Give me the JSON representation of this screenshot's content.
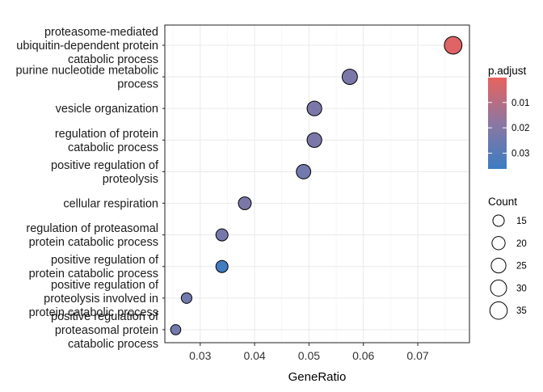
{
  "chart_data": {
    "type": "scatter",
    "xlabel": "GeneRatio",
    "ylabel": "",
    "xlim": [
      0.0235,
      0.0795
    ],
    "x_ticks": [
      0.03,
      0.04,
      0.05,
      0.06,
      0.07
    ],
    "x_tick_labels": [
      "0.03",
      "0.04",
      "0.05",
      "0.06",
      "0.07"
    ],
    "grid": true,
    "categories": [
      "proteasome-mediated ubiquitin-dependent protein catabolic process",
      "purine nucleotide metabolic process",
      "vesicle organization",
      "regulation of protein catabolic process",
      "positive regulation of proteolysis",
      "cellular respiration",
      "regulation of proteasomal protein catabolic process",
      "positive regulation of protein catabolic process",
      "positive regulation of proteolysis involved in protein catabolic process",
      "positive regulation of proteasomal protein catabolic process"
    ],
    "category_label_lines": [
      [
        "proteasome-mediated",
        "ubiquitin-dependent protein",
        "catabolic process"
      ],
      [
        "purine nucleotide metabolic",
        "process"
      ],
      [
        "vesicle organization"
      ],
      [
        "regulation of protein",
        "catabolic process"
      ],
      [
        "positive regulation of",
        "proteolysis"
      ],
      [
        "cellular respiration"
      ],
      [
        "regulation of proteasomal",
        "protein catabolic process"
      ],
      [
        "positive regulation of",
        "protein catabolic process"
      ],
      [
        "positive regulation of",
        "proteolysis involved in",
        "protein catabolic process"
      ],
      [
        "positive regulation of",
        "proteasomal protein",
        "catabolic process"
      ]
    ],
    "points": [
      {
        "category": "proteasome-mediated ubiquitin-dependent protein catabolic process",
        "x": 0.0765,
        "count": 36,
        "p_adjust": 0.002
      },
      {
        "category": "purine nucleotide metabolic process",
        "x": 0.0575,
        "count": 27,
        "p_adjust": 0.022
      },
      {
        "category": "vesicle organization",
        "x": 0.051,
        "count": 25,
        "p_adjust": 0.022
      },
      {
        "category": "regulation of protein catabolic process",
        "x": 0.051,
        "count": 25,
        "p_adjust": 0.022
      },
      {
        "category": "positive regulation of proteolysis",
        "x": 0.049,
        "count": 24,
        "p_adjust": 0.024
      },
      {
        "category": "cellular respiration",
        "x": 0.0382,
        "count": 19,
        "p_adjust": 0.022
      },
      {
        "category": "regulation of proteasomal protein catabolic process",
        "x": 0.034,
        "count": 17,
        "p_adjust": 0.023
      },
      {
        "category": "positive regulation of protein catabolic process",
        "x": 0.034,
        "count": 17,
        "p_adjust": 0.035
      },
      {
        "category": "positive regulation of proteolysis involved in protein catabolic process",
        "x": 0.0275,
        "count": 13,
        "p_adjust": 0.024
      },
      {
        "category": "positive regulation of proteasomal protein catabolic process",
        "x": 0.0255,
        "count": 12,
        "p_adjust": 0.024
      }
    ],
    "color_legend": {
      "title": "p.adjust",
      "ticks": [
        0.01,
        0.02,
        0.03
      ],
      "tick_labels": [
        "0.01",
        "0.02",
        "0.03"
      ],
      "range": [
        0.0002,
        0.0362
      ],
      "low_color": "#E8625E",
      "high_color": "#3B7CC4",
      "mid_color": "#8C77A2",
      "placement": "right"
    },
    "size_legend": {
      "title": "Count",
      "values": [
        15,
        20,
        25,
        30,
        35
      ],
      "labels": [
        "15",
        "20",
        "25",
        "30",
        "35"
      ],
      "placement": "right"
    }
  }
}
